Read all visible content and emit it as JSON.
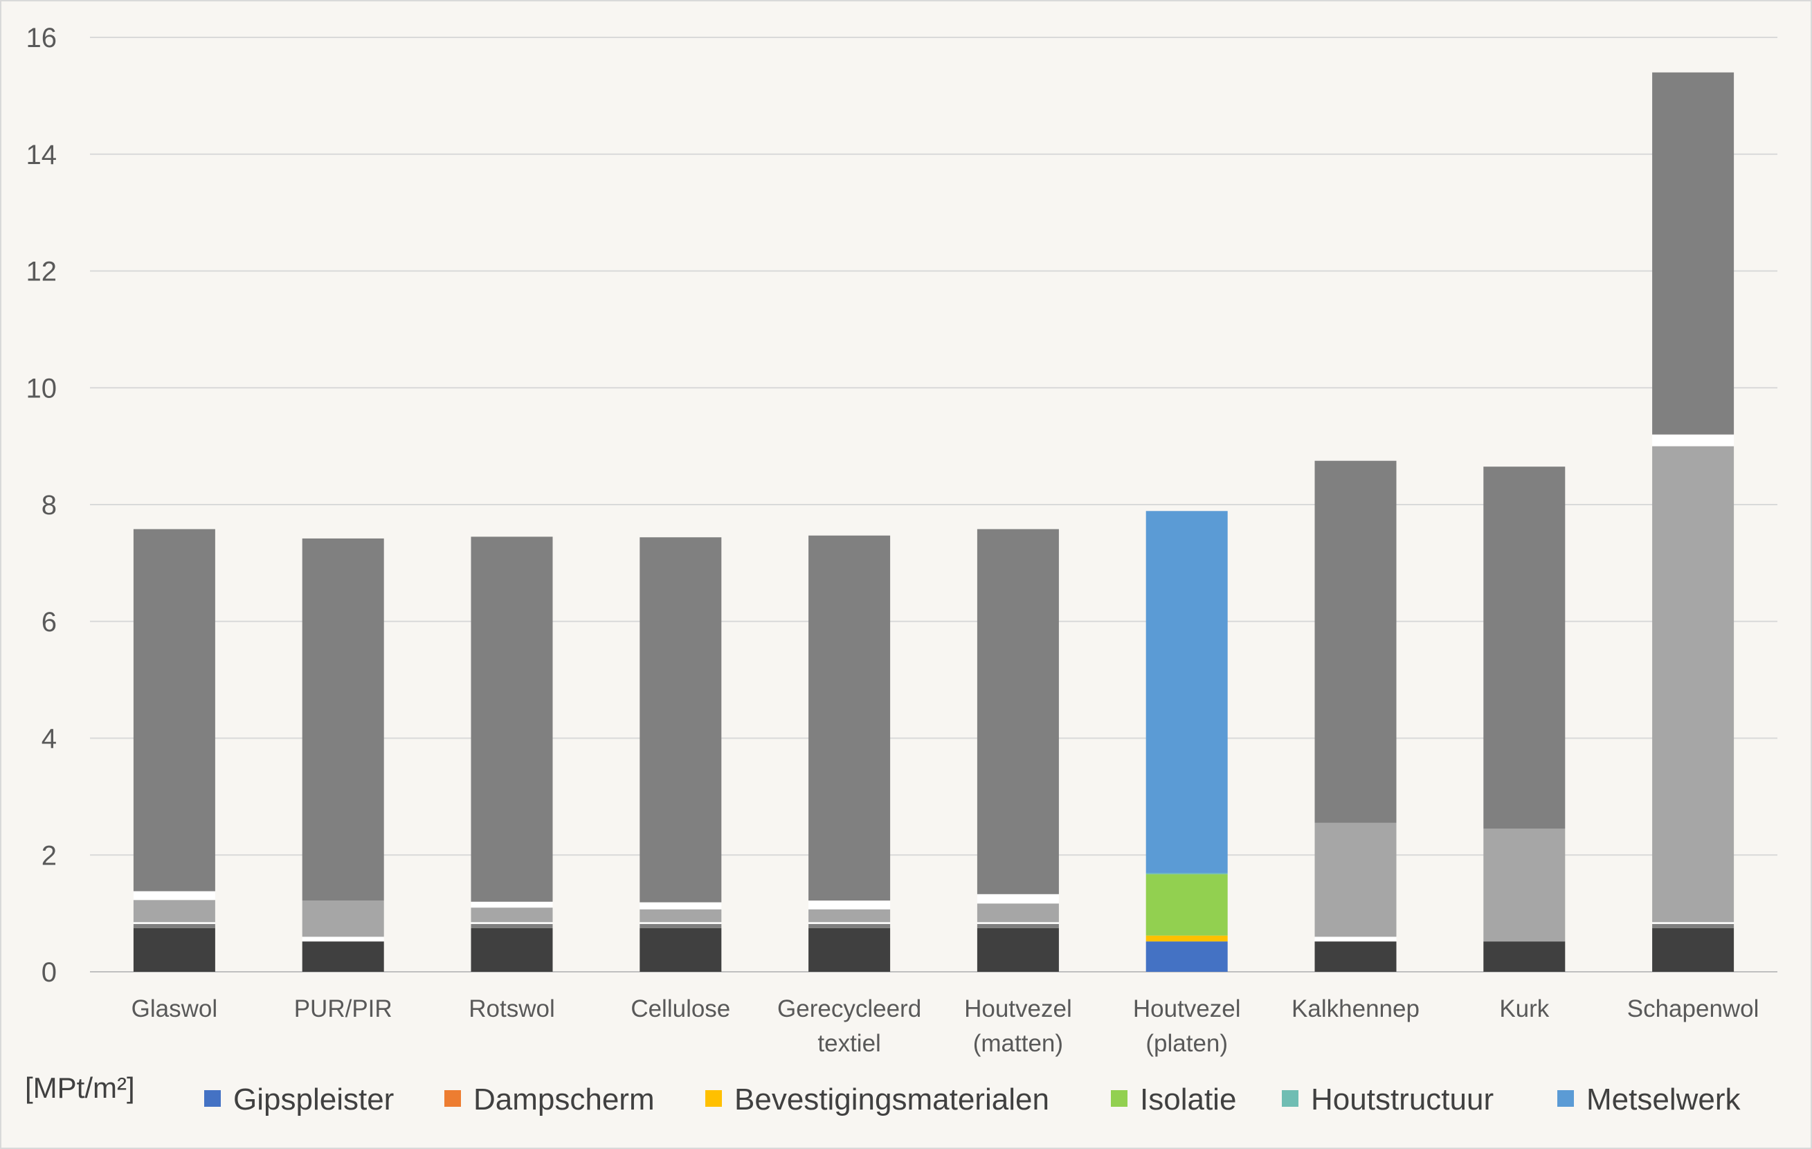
{
  "chart_data": {
    "type": "bar",
    "stacked": true,
    "unit_label": "[MPt/m²]",
    "ylim": [
      0,
      16
    ],
    "yticks": [
      0,
      2,
      4,
      6,
      8,
      10,
      12,
      14,
      16
    ],
    "grid": true,
    "legend_position": "bottom",
    "categories": [
      [
        "Glaswol"
      ],
      [
        "PUR/PIR"
      ],
      [
        "Rotswol"
      ],
      [
        "Cellulose"
      ],
      [
        "Gerecycleerd",
        "textiel"
      ],
      [
        "Houtvezel",
        "(matten)"
      ],
      [
        "Houtvezel",
        "(platen)"
      ],
      [
        "Kalkhennep"
      ],
      [
        "Kurk"
      ],
      [
        "Schapenwol"
      ]
    ],
    "highlight_index": 6,
    "muted_colors": [
      "#404040",
      "#7f7f7f",
      "#ffffff",
      "#a6a6a6",
      "#ffffff",
      "#808080"
    ],
    "series": [
      {
        "name": "Gipspleister",
        "color": "#4472c4",
        "values": [
          0.75,
          0.52,
          0.75,
          0.75,
          0.75,
          0.75,
          0.52,
          0.52,
          0.52,
          0.75
        ]
      },
      {
        "name": "Dampscherm",
        "color": "#ed7d31",
        "values": [
          0.07,
          0.0,
          0.07,
          0.07,
          0.07,
          0.07,
          0.0,
          0.0,
          0.0,
          0.07
        ]
      },
      {
        "name": "Bevestigingsmaterialen",
        "color": "#ffc000",
        "values": [
          0.03,
          0.08,
          0.03,
          0.03,
          0.03,
          0.03,
          0.1,
          0.08,
          0.0,
          0.03
        ]
      },
      {
        "name": "Isolatie",
        "color": "#92d050",
        "values": [
          0.38,
          0.62,
          0.25,
          0.22,
          0.22,
          0.32,
          1.05,
          1.95,
          1.93,
          8.15
        ]
      },
      {
        "name": "Houtstructuur",
        "color": "#70bdb3",
        "values": [
          0.15,
          0.0,
          0.1,
          0.12,
          0.15,
          0.16,
          0.02,
          0.0,
          0.0,
          0.2
        ]
      },
      {
        "name": "Metselwerk",
        "color": "#5b9bd5",
        "values": [
          6.2,
          6.2,
          6.25,
          6.25,
          6.25,
          6.25,
          6.2,
          6.2,
          6.2,
          6.2
        ]
      }
    ]
  }
}
